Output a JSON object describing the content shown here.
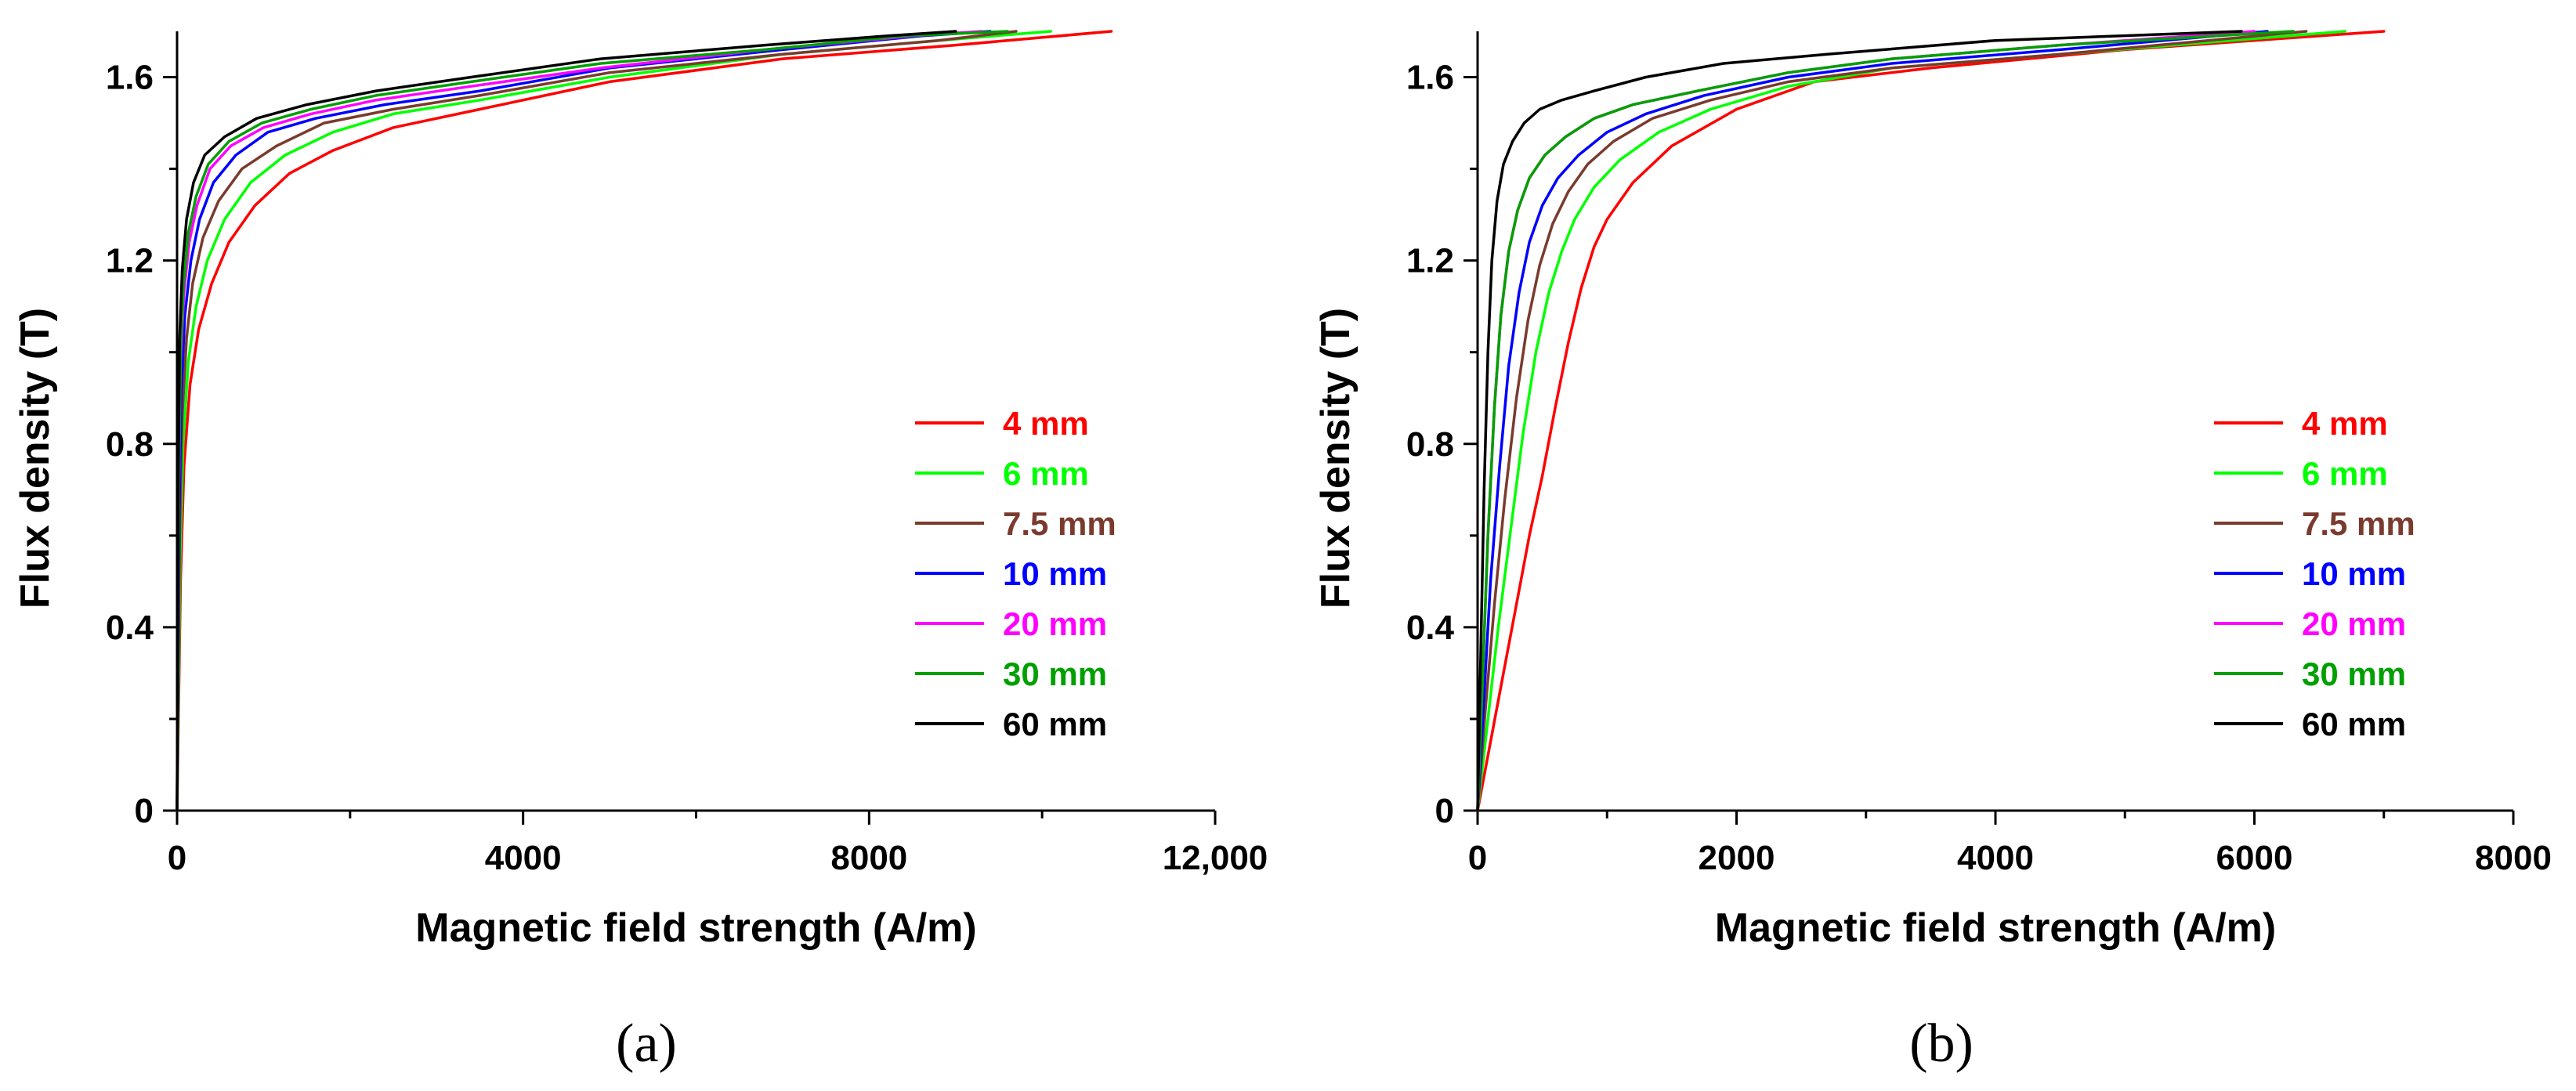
{
  "chart_data": [
    {
      "type": "line",
      "panel_label": "(a)",
      "xlabel": "Magnetic field strength (A/m)",
      "ylabel": "Flux density (T)",
      "xlim": [
        0,
        12000
      ],
      "ylim": [
        0,
        1.7
      ],
      "xticks": [
        0,
        4000,
        8000,
        12000
      ],
      "xtick_labels": [
        "0",
        "4000",
        "8000",
        "12,000"
      ],
      "xminor_ticks": [
        2000,
        6000,
        10000
      ],
      "yticks": [
        0,
        0.4,
        0.8,
        1.2,
        1.6
      ],
      "ytick_labels": [
        "0",
        "0.4",
        "0.8",
        "1.2",
        "1.6"
      ],
      "legend_position": "center-right",
      "series": [
        {
          "name": "4 mm",
          "color": "#ff0000",
          "x": [
            0,
            40,
            80,
            150,
            250,
            400,
            600,
            900,
            1300,
            1800,
            2500,
            3500,
            5000,
            7000,
            9000,
            10800
          ],
          "y": [
            0,
            0.5,
            0.75,
            0.93,
            1.05,
            1.15,
            1.24,
            1.32,
            1.39,
            1.44,
            1.49,
            1.53,
            1.59,
            1.64,
            1.67,
            1.7
          ]
        },
        {
          "name": "6 mm",
          "color": "#00ff00",
          "x": [
            0,
            35,
            70,
            130,
            220,
            350,
            550,
            850,
            1250,
            1800,
            2500,
            3500,
            5000,
            7000,
            8800,
            10100
          ],
          "y": [
            0,
            0.55,
            0.8,
            0.98,
            1.1,
            1.2,
            1.29,
            1.37,
            1.43,
            1.48,
            1.52,
            1.55,
            1.6,
            1.65,
            1.68,
            1.7
          ]
        },
        {
          "name": "7.5 mm",
          "color": "#7a3b2e",
          "x": [
            0,
            30,
            60,
            110,
            180,
            300,
            480,
            750,
            1150,
            1700,
            2500,
            3500,
            5000,
            7000,
            8800,
            9700
          ],
          "y": [
            0,
            0.6,
            0.86,
            1.03,
            1.15,
            1.25,
            1.33,
            1.4,
            1.45,
            1.5,
            1.53,
            1.56,
            1.61,
            1.65,
            1.68,
            1.7
          ]
        },
        {
          "name": "10 mm",
          "color": "#0000ff",
          "x": [
            0,
            25,
            50,
            90,
            160,
            260,
            420,
            680,
            1050,
            1600,
            2400,
            3500,
            5000,
            7000,
            8600,
            9400
          ],
          "y": [
            0,
            0.65,
            0.92,
            1.08,
            1.2,
            1.29,
            1.37,
            1.43,
            1.48,
            1.51,
            1.54,
            1.57,
            1.62,
            1.66,
            1.69,
            1.7
          ]
        },
        {
          "name": "20 mm",
          "color": "#ff00ff",
          "x": [
            0,
            20,
            40,
            80,
            140,
            230,
            380,
            620,
            1000,
            1550,
            2300,
            3400,
            4900,
            6800,
            8500,
            9300
          ],
          "y": [
            0,
            0.7,
            0.98,
            1.13,
            1.24,
            1.32,
            1.4,
            1.45,
            1.49,
            1.52,
            1.55,
            1.58,
            1.62,
            1.66,
            1.69,
            1.7
          ]
        },
        {
          "name": "30 mm",
          "color": "#00a000",
          "x": [
            0,
            20,
            40,
            75,
            130,
            220,
            360,
            600,
            980,
            1550,
            2300,
            3400,
            4900,
            6800,
            8400,
            9600
          ],
          "y": [
            0,
            0.72,
            1.0,
            1.15,
            1.26,
            1.34,
            1.41,
            1.46,
            1.5,
            1.53,
            1.56,
            1.59,
            1.63,
            1.66,
            1.69,
            1.7
          ]
        },
        {
          "name": "60 mm",
          "color": "#000000",
          "x": [
            0,
            15,
            30,
            60,
            110,
            190,
            320,
            550,
            920,
            1500,
            2300,
            3400,
            4900,
            6800,
            8200,
            9000
          ],
          "y": [
            0,
            0.75,
            1.03,
            1.18,
            1.29,
            1.37,
            1.43,
            1.47,
            1.51,
            1.54,
            1.57,
            1.6,
            1.64,
            1.67,
            1.69,
            1.7
          ]
        }
      ]
    },
    {
      "type": "line",
      "panel_label": "(b)",
      "xlabel": "Magnetic field strength (A/m)",
      "ylabel": "Flux density (T)",
      "xlim": [
        0,
        8000
      ],
      "ylim": [
        0,
        1.7
      ],
      "xticks": [
        0,
        2000,
        4000,
        6000,
        8000
      ],
      "xtick_labels": [
        "0",
        "2000",
        "4000",
        "6000",
        "8000"
      ],
      "xminor_ticks": [
        1000,
        3000,
        5000,
        7000
      ],
      "yticks": [
        0,
        0.4,
        0.8,
        1.2,
        1.6
      ],
      "ytick_labels": [
        "0",
        "0.4",
        "0.8",
        "1.2",
        "1.6"
      ],
      "legend_position": "center-right",
      "series": [
        {
          "name": "4 mm",
          "color": "#ff0000",
          "x": [
            0,
            100,
            200,
            300,
            400,
            500,
            600,
            700,
            800,
            900,
            1000,
            1200,
            1500,
            2000,
            2600,
            3500,
            5000,
            7000
          ],
          "y": [
            0,
            0.15,
            0.3,
            0.45,
            0.6,
            0.73,
            0.88,
            1.02,
            1.14,
            1.23,
            1.29,
            1.37,
            1.45,
            1.53,
            1.59,
            1.62,
            1.66,
            1.7
          ]
        },
        {
          "name": "6 mm",
          "color": "#00ff00",
          "x": [
            0,
            80,
            160,
            250,
            350,
            450,
            550,
            650,
            750,
            900,
            1100,
            1400,
            1800,
            2400,
            3200,
            4500,
            6700
          ],
          "y": [
            0,
            0.2,
            0.4,
            0.6,
            0.82,
            1.0,
            1.13,
            1.22,
            1.29,
            1.36,
            1.42,
            1.48,
            1.53,
            1.58,
            1.62,
            1.65,
            1.7
          ]
        },
        {
          "name": "7.5 mm",
          "color": "#7a3b2e",
          "x": [
            0,
            60,
            130,
            210,
            300,
            390,
            480,
            580,
            700,
            850,
            1050,
            1350,
            1800,
            2400,
            3200,
            4500,
            6400
          ],
          "y": [
            0,
            0.22,
            0.45,
            0.68,
            0.9,
            1.07,
            1.19,
            1.28,
            1.35,
            1.41,
            1.46,
            1.51,
            1.55,
            1.59,
            1.62,
            1.65,
            1.7
          ]
        },
        {
          "name": "10 mm",
          "color": "#0000ff",
          "x": [
            0,
            50,
            100,
            170,
            240,
            320,
            400,
            500,
            620,
            780,
            1000,
            1300,
            1750,
            2400,
            3200,
            4500,
            6100
          ],
          "y": [
            0,
            0.25,
            0.5,
            0.75,
            0.97,
            1.13,
            1.24,
            1.32,
            1.38,
            1.43,
            1.48,
            1.52,
            1.56,
            1.6,
            1.63,
            1.66,
            1.7
          ]
        },
        {
          "name": "20 mm",
          "color": "#ff00ff",
          "x": [
            0,
            40,
            80,
            130,
            180,
            240,
            310,
            400,
            520,
            680,
            900,
            1200,
            1700,
            2400,
            3200,
            4500,
            6000
          ],
          "y": [
            0,
            0.3,
            0.6,
            0.88,
            1.08,
            1.22,
            1.31,
            1.38,
            1.43,
            1.47,
            1.51,
            1.54,
            1.57,
            1.61,
            1.64,
            1.67,
            1.7
          ]
        },
        {
          "name": "30 mm",
          "color": "#00a000",
          "x": [
            0,
            40,
            80,
            130,
            180,
            240,
            310,
            400,
            520,
            680,
            900,
            1200,
            1700,
            2400,
            3200,
            4500,
            6300
          ],
          "y": [
            0,
            0.3,
            0.6,
            0.88,
            1.08,
            1.22,
            1.31,
            1.38,
            1.43,
            1.47,
            1.51,
            1.54,
            1.57,
            1.61,
            1.64,
            1.67,
            1.7
          ]
        },
        {
          "name": "60 mm",
          "color": "#000000",
          "x": [
            0,
            25,
            50,
            80,
            110,
            150,
            200,
            270,
            360,
            480,
            650,
            900,
            1300,
            1900,
            2700,
            4000,
            5900
          ],
          "y": [
            0,
            0.35,
            0.7,
            1.0,
            1.2,
            1.33,
            1.41,
            1.46,
            1.5,
            1.53,
            1.55,
            1.57,
            1.6,
            1.63,
            1.65,
            1.68,
            1.7
          ]
        }
      ]
    }
  ]
}
